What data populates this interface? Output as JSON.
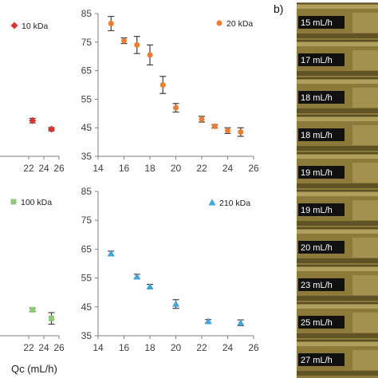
{
  "panel_b": {
    "letter": "b)",
    "frames": [
      "15 mL/h",
      "17 mL/h",
      "18 mL/h",
      "18 mL/h",
      "19 mL/h",
      "19 mL/h",
      "20 mL/h",
      "23 mL/h",
      "25 mL/h",
      "27 mL/h"
    ],
    "colors": {
      "bg": "#8c7a3a",
      "dark": "#3d3417",
      "highlight": "#cdbd7c",
      "label_bg": "#111111"
    }
  },
  "chart_data": [
    {
      "id": "p10",
      "type": "scatter",
      "legend": "10 kDa",
      "marker": "diamond",
      "color": "#d9342b",
      "x_ticks": [
        "22",
        "24",
        "26"
      ],
      "y_ticks": [],
      "xlim": [
        14,
        26
      ],
      "ylim": [
        35,
        85
      ],
      "points": [
        {
          "x": 22.5,
          "y": 47.5,
          "err": 0.8
        },
        {
          "x": 25,
          "y": 44.5,
          "err": 0.6
        }
      ]
    },
    {
      "id": "p20",
      "type": "scatter",
      "legend": "20 kDa",
      "marker": "circle",
      "color": "#ed7d31",
      "x_ticks": [
        "14",
        "16",
        "18",
        "20",
        "22",
        "24",
        "26"
      ],
      "y_ticks": [
        "35",
        "45",
        "55",
        "65",
        "75",
        "85"
      ],
      "xlim": [
        14,
        26
      ],
      "ylim": [
        35,
        85
      ],
      "points": [
        {
          "x": 15,
          "y": 81.5,
          "err": 2.5
        },
        {
          "x": 16,
          "y": 75.5,
          "err": 1.0
        },
        {
          "x": 17,
          "y": 74,
          "err": 3.0
        },
        {
          "x": 18,
          "y": 70.5,
          "err": 3.5
        },
        {
          "x": 19,
          "y": 60,
          "err": 3.0
        },
        {
          "x": 20,
          "y": 52,
          "err": 1.5
        },
        {
          "x": 22,
          "y": 48,
          "err": 1.0
        },
        {
          "x": 23,
          "y": 45.5,
          "err": 0.6
        },
        {
          "x": 24,
          "y": 44,
          "err": 1.0
        },
        {
          "x": 25,
          "y": 43.5,
          "err": 1.5
        }
      ]
    },
    {
      "id": "p100",
      "type": "scatter",
      "legend": "100 kDa",
      "marker": "square",
      "color": "#8fc97a",
      "x_ticks": [
        "22",
        "24",
        "26"
      ],
      "y_ticks": [],
      "xlim": [
        14,
        26
      ],
      "ylim": [
        35,
        85
      ],
      "points": [
        {
          "x": 22.5,
          "y": 44,
          "err": 0.6
        },
        {
          "x": 25,
          "y": 41,
          "err": 2.0
        }
      ],
      "xlabel": "Qc (mL/h)"
    },
    {
      "id": "p210",
      "type": "scatter",
      "legend": "210 kDa",
      "marker": "triangle",
      "color": "#41a5dc",
      "x_ticks": [
        "14",
        "16",
        "18",
        "20",
        "22",
        "24",
        "26"
      ],
      "y_ticks": [
        "35",
        "45",
        "55",
        "65",
        "75",
        "85"
      ],
      "xlim": [
        14,
        26
      ],
      "ylim": [
        35,
        85
      ],
      "points": [
        {
          "x": 15,
          "y": 63.5,
          "err": 0.8
        },
        {
          "x": 17,
          "y": 55.5,
          "err": 0.8
        },
        {
          "x": 18,
          "y": 52,
          "err": 0.8
        },
        {
          "x": 20,
          "y": 46,
          "err": 1.5
        },
        {
          "x": 22.5,
          "y": 40,
          "err": 0.6
        },
        {
          "x": 25,
          "y": 39.5,
          "err": 1.0
        }
      ]
    }
  ]
}
